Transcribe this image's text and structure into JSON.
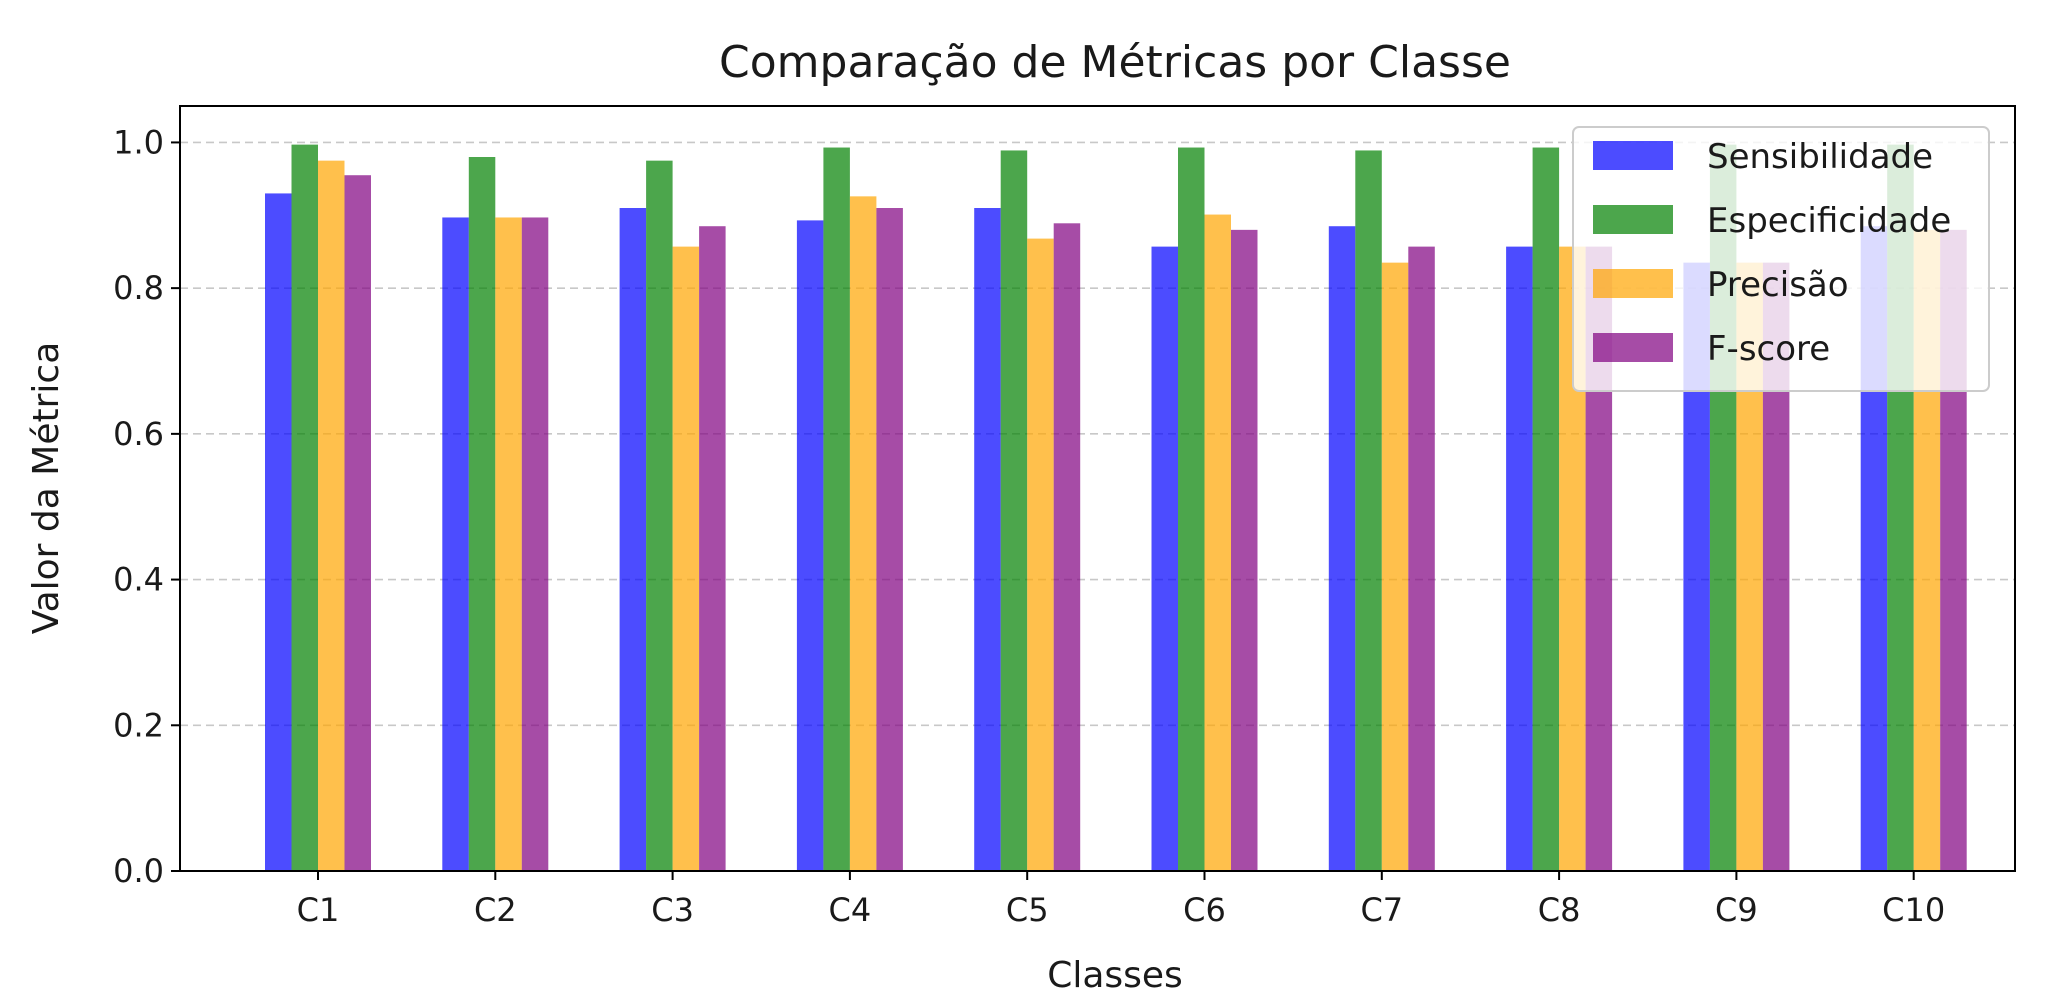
{
  "chart_data": {
    "type": "bar",
    "title": "Comparação de Métricas por Classe",
    "xlabel": "Classes",
    "ylabel": "Valor da Métrica",
    "ylim": [
      0,
      1.05
    ],
    "yticks": [
      "0.0",
      "0.2",
      "0.4",
      "0.6",
      "0.8",
      "1.0"
    ],
    "grid": "y-dashed",
    "legend_position": "top-right",
    "categories": [
      "C1",
      "C2",
      "C3",
      "C4",
      "C5",
      "C6",
      "C7",
      "C8",
      "C9",
      "C10"
    ],
    "series": [
      {
        "name": "Sensibilidade",
        "color": "#0000ff",
        "values": [
          0.93,
          0.897,
          0.91,
          0.893,
          0.91,
          0.857,
          0.885,
          0.857,
          0.835,
          0.885
        ]
      },
      {
        "name": "Especificidade",
        "color": "#008000",
        "values": [
          0.997,
          0.98,
          0.975,
          0.993,
          0.989,
          0.993,
          0.989,
          0.993,
          0.997,
          0.997
        ]
      },
      {
        "name": "Precisão",
        "color": "#ffa500",
        "values": [
          0.975,
          0.897,
          0.857,
          0.926,
          0.868,
          0.901,
          0.835,
          0.857,
          0.835,
          0.88
        ]
      },
      {
        "name": "F-score",
        "color": "#800080",
        "values": [
          0.955,
          0.897,
          0.885,
          0.91,
          0.889,
          0.88,
          0.857,
          0.857,
          0.835,
          0.88
        ]
      }
    ],
    "bar_opacity": 0.7
  }
}
